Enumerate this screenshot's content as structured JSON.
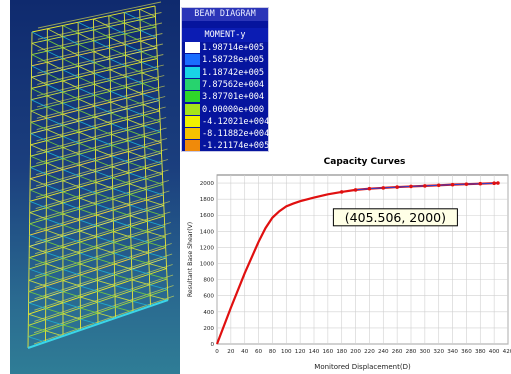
{
  "legend": {
    "title": "BEAM DIAGRAM",
    "subtitle": "MOMENT-y",
    "entries": [
      {
        "value": "1.98714e+005",
        "color": "#ffffff"
      },
      {
        "value": "1.58728e+005",
        "color": "#1a6cff"
      },
      {
        "value": "1.18742e+005",
        "color": "#19d4e6"
      },
      {
        "value": "7.87562e+004",
        "color": "#27d36e"
      },
      {
        "value": "3.87701e+004",
        "color": "#2fd62a"
      },
      {
        "value": "0.00000e+000",
        "color": "#a6e31a"
      },
      {
        "value": "-4.12021e+004",
        "color": "#f0f000"
      },
      {
        "value": "-8.11882e+004",
        "color": "#f5c200"
      },
      {
        "value": "-1.21174e+005",
        "color": "#f08a0a"
      }
    ]
  },
  "chart_data": {
    "type": "line",
    "title": "Capacity Curves",
    "xlabel": "Monitored Displacement(D)",
    "ylabel": "Resultant Base Shear(V)",
    "xlim": [
      0,
      420
    ],
    "ylim": [
      0,
      2100
    ],
    "xticks": [
      0,
      20,
      40,
      60,
      80,
      100,
      120,
      140,
      160,
      180,
      200,
      220,
      240,
      260,
      280,
      300,
      320,
      340,
      360,
      380,
      400,
      420
    ],
    "yticks": [
      0,
      200,
      400,
      600,
      800,
      1000,
      1200,
      1400,
      1600,
      1800,
      2000
    ],
    "grid": true,
    "annotation": "(405.506, 2000)",
    "series": [
      {
        "color": "#e01010",
        "x": [
          0,
          20,
          40,
          60,
          70,
          80,
          90,
          100,
          110,
          120,
          140,
          160,
          180,
          200,
          220,
          240,
          260,
          280,
          300,
          320,
          340,
          360,
          380,
          400,
          405.5
        ],
        "y": [
          0,
          450,
          880,
          1270,
          1440,
          1570,
          1650,
          1710,
          1745,
          1775,
          1820,
          1860,
          1890,
          1915,
          1930,
          1940,
          1950,
          1958,
          1965,
          1972,
          1980,
          1986,
          1992,
          1998,
          2000
        ]
      }
    ]
  }
}
